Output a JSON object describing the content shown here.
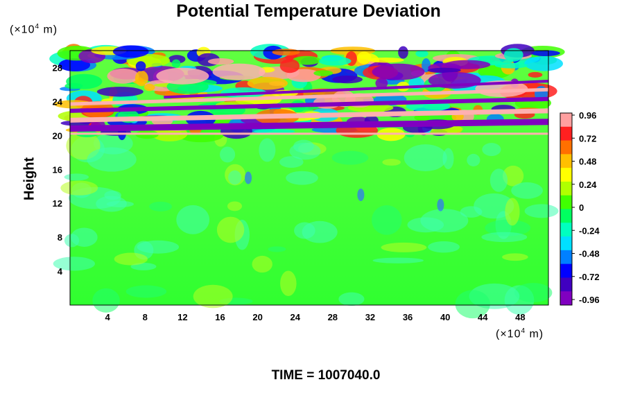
{
  "chart_data": {
    "type": "heatmap",
    "title": "Potential Temperature Deviation",
    "xlabel": "",
    "ylabel": "Height",
    "x_unit": "(×10⁴ m)",
    "y_unit": "(×10⁴ m)",
    "x_ticks": [
      4,
      8,
      12,
      16,
      20,
      24,
      28,
      32,
      36,
      40,
      44,
      48
    ],
    "y_ticks": [
      4,
      8,
      12,
      16,
      20,
      24,
      28
    ],
    "xlim": [
      0,
      51
    ],
    "ylim": [
      0,
      30
    ],
    "colorbar": {
      "range": [
        -0.96,
        0.96
      ],
      "tick_labels": [
        "0.96",
        "0.72",
        "0.48",
        "0.24",
        "0",
        "-0.24",
        "-0.48",
        "-0.72",
        "-0.96"
      ],
      "colors": [
        "#ffa0a0",
        "#ff2020",
        "#ff7000",
        "#ffc000",
        "#ffff00",
        "#b0ff00",
        "#40ff00",
        "#00ff60",
        "#00ffc0",
        "#00e0ff",
        "#0080ff",
        "#0000ff",
        "#4000c0",
        "#8000c0"
      ]
    },
    "field_description_values": {
      "lower_region_value": 0.0,
      "upper_band_min": -0.96,
      "upper_band_max": 0.96,
      "transition_height": 20
    }
  },
  "footer": {
    "time_text": "TIME = 1007040.0"
  }
}
